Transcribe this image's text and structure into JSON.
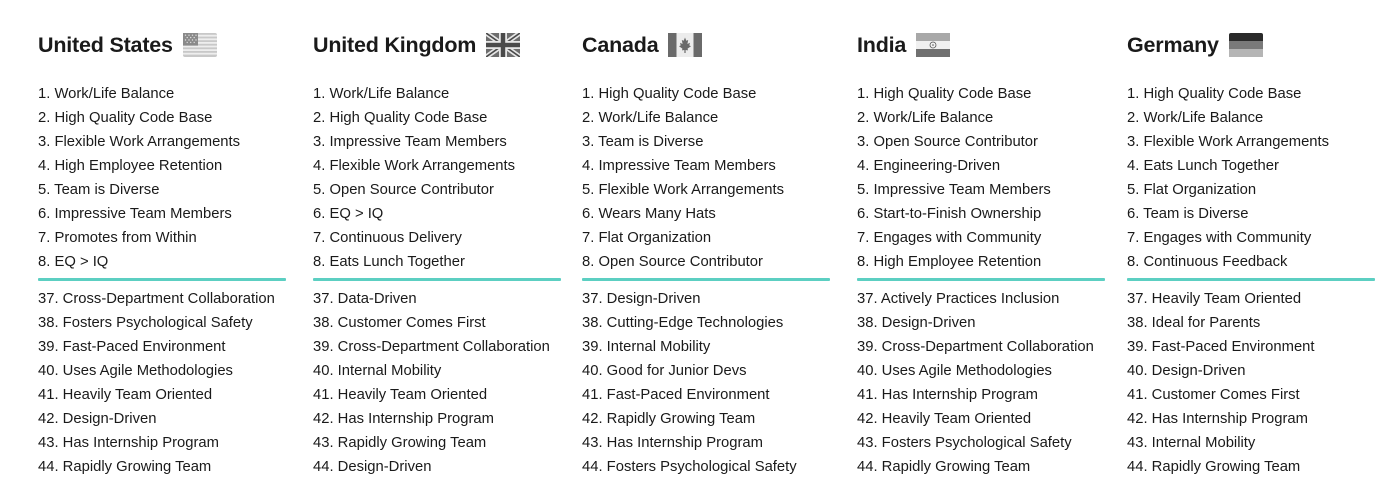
{
  "columns": [
    {
      "country": "United States",
      "flag_icon": "us-flag-icon",
      "top": [
        "1. Work/Life Balance",
        "2. High Quality Code Base",
        "3. Flexible Work Arrangements",
        "4. High Employee Retention",
        "5. Team is Diverse",
        "6. Impressive Team Members",
        "7. Promotes from Within",
        "8. EQ > IQ"
      ],
      "bottom": [
        "37. Cross-Department Collaboration",
        "38. Fosters Psychological Safety",
        "39. Fast-Paced Environment",
        "40. Uses Agile Methodologies",
        "41. Heavily Team Oriented",
        "42. Design-Driven",
        "43. Has Internship Program",
        "44. Rapidly Growing Team"
      ]
    },
    {
      "country": "United Kingdom",
      "flag_icon": "uk-flag-icon",
      "top": [
        "1. Work/Life Balance",
        "2. High Quality Code Base",
        "3. Impressive Team Members",
        "4. Flexible Work Arrangements",
        "5. Open Source Contributor",
        "6. EQ > IQ",
        "7. Continuous Delivery",
        "8. Eats Lunch Together"
      ],
      "bottom": [
        "37. Data-Driven",
        "38. Customer Comes First",
        "39. Cross-Department Collaboration",
        "40. Internal Mobility",
        "41. Heavily Team Oriented",
        "42. Has Internship Program",
        "43. Rapidly Growing Team",
        "44. Design-Driven"
      ]
    },
    {
      "country": "Canada",
      "flag_icon": "canada-flag-icon",
      "top": [
        "1. High Quality Code Base",
        "2. Work/Life Balance",
        "3. Team is Diverse",
        "4. Impressive Team Members",
        "5. Flexible Work Arrangements",
        "6. Wears Many Hats",
        "7. Flat Organization",
        "8. Open Source Contributor"
      ],
      "bottom": [
        "37. Design-Driven",
        "38. Cutting-Edge Technologies",
        "39. Internal Mobility",
        "40. Good for Junior Devs",
        "41. Fast-Paced Environment",
        "42. Rapidly Growing Team",
        "43. Has Internship Program",
        "44. Fosters Psychological Safety"
      ]
    },
    {
      "country": "India",
      "flag_icon": "india-flag-icon",
      "top": [
        "1. High Quality Code Base",
        "2. Work/Life Balance",
        "3. Open Source Contributor",
        "4. Engineering-Driven",
        "5. Impressive Team Members",
        "6. Start-to-Finish Ownership",
        "7. Engages with Community",
        "8. High Employee Retention"
      ],
      "bottom": [
        "37. Actively Practices Inclusion",
        "38. Design-Driven",
        "39. Cross-Department Collaboration",
        "40. Uses Agile Methodologies",
        "41. Has Internship Program",
        "42. Heavily Team Oriented",
        "43. Fosters Psychological Safety",
        "44. Rapidly Growing Team"
      ]
    },
    {
      "country": "Germany",
      "flag_icon": "germany-flag-icon",
      "top": [
        "1. High Quality Code Base",
        "2. Work/Life Balance",
        "3. Flexible Work Arrangements",
        "4. Eats Lunch Together",
        "5. Flat Organization",
        "6. Team is Diverse",
        "7. Engages with Community",
        "8. Continuous Feedback"
      ],
      "bottom": [
        "37. Heavily Team Oriented",
        "38. Ideal for Parents",
        "39. Fast-Paced Environment",
        "40. Design-Driven",
        "41. Customer Comes First",
        "42. Has Internship Program",
        "43. Internal Mobility",
        "44. Rapidly Growing Team"
      ]
    }
  ],
  "colors": {
    "divider": "#5ccfc2",
    "text": "#1a1a1a"
  }
}
